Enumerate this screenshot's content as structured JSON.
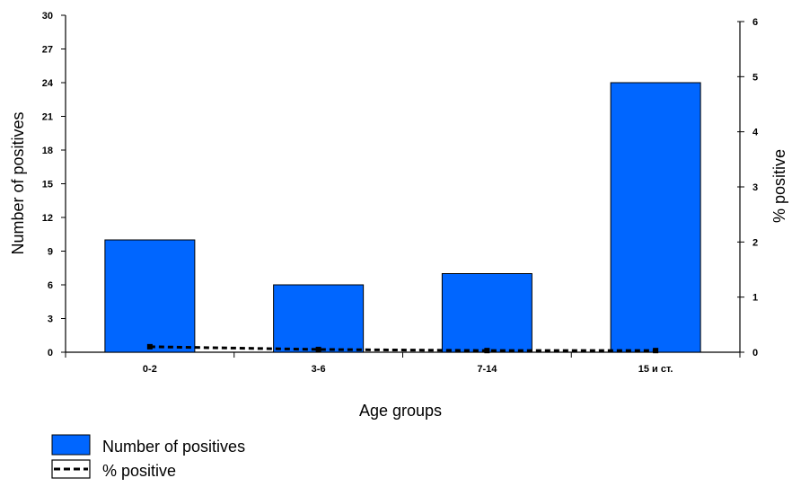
{
  "colors": {
    "bar": "#0066ff",
    "bar_stroke": "#000000",
    "line": "#000000"
  },
  "chart_data": {
    "type": "bar",
    "title": "",
    "categories": [
      "0-2",
      "3-6",
      "7-14",
      "15 и ст."
    ],
    "xlabel": "Age groups",
    "ylabel": "Number of positives",
    "y2label": "% positive",
    "ylim": [
      0,
      30
    ],
    "yticks": [
      0,
      3,
      6,
      9,
      12,
      15,
      18,
      21,
      24,
      27,
      30
    ],
    "y2lim": [
      0,
      6
    ],
    "y2ticks": [
      0,
      1,
      2,
      3,
      4,
      5,
      6
    ],
    "grid": false,
    "legend_position": "bottom-left",
    "series": [
      {
        "name": "Number of positives",
        "type": "bar",
        "axis": "left",
        "values": [
          10,
          6,
          7,
          24
        ]
      },
      {
        "name": "% positive",
        "type": "line",
        "style": "dashed",
        "axis": "right",
        "values": [
          0.1,
          0.05,
          0.03,
          0.03
        ]
      }
    ]
  }
}
